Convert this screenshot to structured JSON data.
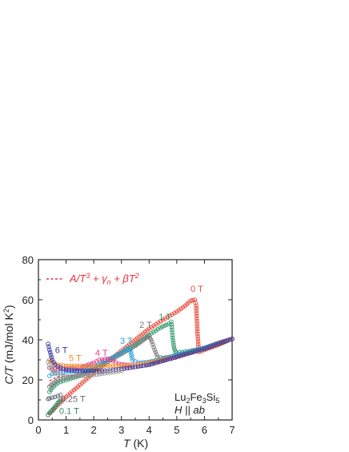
{
  "chart_data": {
    "type": "scatter",
    "xlabel": {
      "italic": "T",
      "unit": " (K)"
    },
    "ylabel": {
      "italic": "C/T",
      "unit": " (mJ/mol K",
      "sup": "2",
      "close": ")"
    },
    "xlim": [
      0,
      7
    ],
    "ylim": [
      0,
      80
    ],
    "xticks": [
      "0",
      "1",
      "2",
      "3",
      "4",
      "5",
      "6",
      "7"
    ],
    "yticks": [
      "0",
      "20",
      "40",
      "60",
      "80"
    ],
    "legend": {
      "placement": "top-left",
      "line1": "A/T",
      "sup1": "3",
      "line2": " + γ",
      "sub2": "n",
      "line3": " + βT",
      "sup3": "2",
      "color": "#e8323c"
    },
    "annotation": {
      "compound": "Lu",
      "sub1": "2",
      "mid1": "Fe",
      "sub2": "3",
      "mid2": "Si",
      "sub3": "5",
      "field": "H || ab",
      "placement": "bottom-right"
    },
    "fit": {
      "name": "A/T³ + γn + βT²",
      "color": "#e8323c",
      "x": [
        0.4,
        0.6,
        0.8,
        1.0,
        1.5,
        2.0,
        3.0,
        4.0,
        5.0,
        6.0,
        7.0
      ],
      "y": [
        19.5,
        21.0,
        21.7,
        22.0,
        22.4,
        22.8,
        24.5,
        27.0,
        30.5,
        35.0,
        40.5
      ]
    },
    "series": [
      {
        "name": "0 T",
        "color": "#e84a3a",
        "label_x": 5.5,
        "label_y": 64,
        "x": [
          0.35,
          0.5,
          0.7,
          1.0,
          1.5,
          2.0,
          2.5,
          3.0,
          3.5,
          4.0,
          4.5,
          5.0,
          5.3,
          5.5,
          5.65,
          5.7,
          5.75,
          5.8,
          5.9,
          6.0,
          6.5,
          7.0
        ],
        "y": [
          2.5,
          4.5,
          7.5,
          11.5,
          17.5,
          23.5,
          29.0,
          34.5,
          40.0,
          45.5,
          50.0,
          54.0,
          57.0,
          59.5,
          60.0,
          57.0,
          43.0,
          34.0,
          34.3,
          35.0,
          37.5,
          40.5
        ]
      },
      {
        "name": "0.1 T",
        "color": "#2e8b6a",
        "label_x": 0.75,
        "label_y": 3,
        "x": [
          0.35,
          0.4,
          0.5,
          0.6,
          0.7,
          0.8
        ],
        "y": [
          2.5,
          3.5,
          5.0,
          6.5,
          8.5,
          10.0
        ]
      },
      {
        "name": "0.25 T",
        "color": "#606a74",
        "label_x": 0.8,
        "label_y": 9,
        "x": [
          0.35,
          0.4,
          0.5,
          0.6,
          0.7,
          0.8
        ],
        "y": [
          10.5,
          10.8,
          11.2,
          11.5,
          12.0,
          12.5
        ]
      },
      {
        "name": "1 T",
        "color": "#2e9a6a",
        "label_x": 4.35,
        "label_y": 50,
        "x": [
          0.4,
          0.5,
          0.7,
          1.0,
          1.5,
          2.0,
          2.5,
          3.0,
          3.5,
          4.0,
          4.4,
          4.7,
          4.8,
          4.85,
          4.9,
          4.95,
          5.0,
          5.5,
          6.0,
          6.5,
          7.0
        ],
        "y": [
          14.0,
          16.0,
          18.5,
          20.0,
          22.0,
          25.0,
          29.0,
          33.0,
          37.5,
          42.5,
          46.0,
          48.0,
          49.0,
          41.0,
          36.0,
          34.0,
          33.5,
          34.5,
          36.0,
          38.0,
          40.5
        ]
      },
      {
        "name": "2 T",
        "color": "#7b7b7b",
        "label_x": 3.65,
        "label_y": 46,
        "x": [
          0.4,
          0.5,
          0.7,
          1.0,
          1.5,
          2.0,
          2.5,
          3.0,
          3.5,
          3.8,
          4.0,
          4.1,
          4.2,
          4.3,
          4.5,
          5.0,
          5.5,
          6.0,
          6.5,
          7.0
        ],
        "y": [
          16.5,
          18.0,
          20.0,
          21.0,
          22.5,
          25.5,
          29.0,
          33.0,
          37.0,
          40.0,
          42.0,
          39.0,
          35.0,
          31.5,
          31.0,
          32.0,
          34.0,
          36.0,
          38.5,
          40.5
        ]
      },
      {
        "name": "3 T",
        "color": "#2a9fd6",
        "label_x": 2.95,
        "label_y": 38,
        "x": [
          0.4,
          0.5,
          0.7,
          1.0,
          1.5,
          2.0,
          2.5,
          3.0,
          3.2,
          3.3,
          3.4,
          3.6,
          4.0,
          4.5,
          5.0,
          5.5,
          6.0,
          6.5,
          7.0
        ],
        "y": [
          22.0,
          23.0,
          23.5,
          24.0,
          24.5,
          26.5,
          30.0,
          33.5,
          35.5,
          36.0,
          30.0,
          28.5,
          29.0,
          30.5,
          32.5,
          34.0,
          36.0,
          38.0,
          40.5
        ]
      },
      {
        "name": "4 T",
        "color": "#e0408a",
        "label_x": 2.05,
        "label_y": 32,
        "x": [
          0.4,
          0.5,
          0.7,
          1.0,
          1.5,
          2.0,
          2.2,
          2.5,
          2.7,
          2.9,
          3.2,
          3.5,
          4.0,
          4.5,
          5.0,
          5.5,
          6.0,
          6.5,
          7.0
        ],
        "y": [
          26.0,
          25.5,
          25.5,
          25.5,
          26.0,
          28.5,
          30.0,
          30.5,
          29.5,
          28.0,
          27.5,
          27.5,
          28.5,
          30.0,
          31.5,
          33.5,
          35.5,
          38.0,
          40.5
        ]
      },
      {
        "name": "5 T",
        "color": "#f08a2a",
        "label_x": 1.1,
        "label_y": 29.5,
        "x": [
          0.4,
          0.5,
          0.7,
          1.0,
          1.5,
          2.0,
          2.5,
          3.0,
          3.5,
          4.0,
          4.5,
          5.0,
          5.5,
          6.0,
          6.5,
          7.0
        ],
        "y": [
          30.0,
          28.5,
          27.5,
          27.0,
          27.0,
          26.5,
          27.0,
          27.0,
          27.5,
          28.5,
          30.0,
          31.5,
          33.5,
          35.5,
          38.0,
          40.5
        ]
      },
      {
        "name": "6 T",
        "color": "#3a3aa0",
        "label_x": 0.6,
        "label_y": 33.5,
        "x": [
          0.35,
          0.4,
          0.5,
          0.6,
          0.8,
          1.0,
          1.5,
          2.0,
          2.5,
          3.0,
          3.5,
          4.0,
          4.5,
          5.0,
          5.5,
          6.0,
          6.5,
          7.0
        ],
        "y": [
          38.0,
          35.0,
          30.0,
          27.5,
          26.0,
          25.0,
          24.5,
          24.5,
          24.5,
          25.5,
          26.5,
          27.5,
          29.5,
          31.5,
          33.5,
          35.5,
          38.0,
          40.5
        ]
      },
      {
        "name": "",
        "color": "#9a9a9a",
        "x": [
          0.35,
          0.4,
          0.5,
          0.6,
          0.8,
          1.0,
          1.5,
          2.0,
          2.5,
          3.0
        ],
        "y": [
          29.0,
          27.5,
          25.0,
          23.5,
          22.0,
          21.5,
          22.0,
          22.5,
          23.5,
          24.5
        ]
      }
    ]
  }
}
